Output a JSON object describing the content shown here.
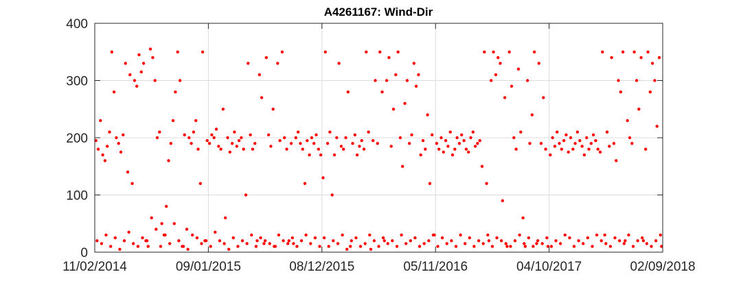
{
  "chart_data": {
    "type": "scatter",
    "title": "A4261167: Wind-Dir",
    "xlabel": "",
    "ylabel": "",
    "x_tick_labels": [
      "11/02/2014",
      "09/01/2015",
      "08/12/2015",
      "05/11/2016",
      "04/10/2017",
      "02/09/2018"
    ],
    "x_tick_positions": [
      0,
      1,
      2,
      3,
      4,
      5
    ],
    "xlim": [
      0,
      5
    ],
    "y_ticks": [
      0,
      100,
      200,
      300,
      400
    ],
    "y_tick_labels": [
      "0",
      "100",
      "200",
      "300",
      "400"
    ],
    "ylim": [
      0,
      400
    ],
    "grid": true,
    "marker_color": "#ff0000",
    "series": [
      {
        "x": [
          0.01,
          0.03,
          0.05,
          0.07,
          0.09,
          0.11,
          0.13,
          0.15,
          0.17,
          0.19,
          0.21,
          0.23,
          0.25,
          0.27,
          0.29,
          0.31,
          0.33,
          0.35,
          0.37,
          0.39,
          0.41,
          0.43,
          0.45,
          0.47,
          0.49,
          0.51,
          0.53,
          0.55,
          0.57,
          0.59,
          0.61,
          0.63,
          0.65,
          0.67,
          0.69,
          0.71,
          0.73,
          0.75,
          0.77,
          0.79,
          0.81,
          0.83,
          0.85,
          0.87,
          0.89,
          0.91,
          0.93,
          0.95,
          0.97,
          0.99,
          1.01,
          1.03,
          1.05,
          1.07,
          1.09,
          1.11,
          1.13,
          1.15,
          1.17,
          1.19,
          1.21,
          1.23,
          1.25,
          1.27,
          1.29,
          1.31,
          1.33,
          1.35,
          1.37,
          1.39,
          1.41,
          1.43,
          1.45,
          1.47,
          1.49,
          1.51,
          1.53,
          1.55,
          1.57,
          1.59,
          1.61,
          1.63,
          1.65,
          1.67,
          1.69,
          1.71,
          1.73,
          1.75,
          1.77,
          1.79,
          1.81,
          1.83,
          1.85,
          1.87,
          1.89,
          1.91,
          1.93,
          1.95,
          1.97,
          1.99,
          2.01,
          2.03,
          2.05,
          2.07,
          2.09,
          2.11,
          2.13,
          2.15,
          2.17,
          2.19,
          2.21,
          2.23,
          2.25,
          2.27,
          2.29,
          2.31,
          2.33,
          2.35,
          2.37,
          2.39,
          2.41,
          2.43,
          2.45,
          2.47,
          2.49,
          2.51,
          2.53,
          2.55,
          2.57,
          2.59,
          2.61,
          2.63,
          2.65,
          2.67,
          2.69,
          2.71,
          2.73,
          2.75,
          2.77,
          2.79,
          2.81,
          2.83,
          2.85,
          2.87,
          2.89,
          2.91,
          2.93,
          2.95,
          2.97,
          2.99,
          3.01,
          3.03,
          3.05,
          3.07,
          3.09,
          3.11,
          3.13,
          3.15,
          3.17,
          3.19,
          3.21,
          3.23,
          3.25,
          3.27,
          3.29,
          3.31,
          3.33,
          3.35,
          3.37,
          3.39,
          3.41,
          3.43,
          3.45,
          3.47,
          3.49,
          3.51,
          3.53,
          3.55,
          3.57,
          3.59,
          3.61,
          3.63,
          3.65,
          3.67,
          3.69,
          3.71,
          3.73,
          3.75,
          3.77,
          3.79,
          3.81,
          3.83,
          3.85,
          3.87,
          3.89,
          3.91,
          3.93,
          3.95,
          3.97,
          3.99,
          4.01,
          4.03,
          4.05,
          4.07,
          4.09,
          4.11,
          4.13,
          4.15,
          4.17,
          4.19,
          4.21,
          4.23,
          4.25,
          4.27,
          4.29,
          4.31,
          4.33,
          4.35,
          4.37,
          4.39,
          4.41,
          4.43,
          4.45,
          4.47,
          4.49,
          4.51,
          4.53,
          4.55,
          4.57,
          4.59,
          4.61,
          4.63,
          4.65,
          4.67,
          4.69,
          4.71,
          4.73,
          4.75,
          4.77,
          4.79,
          4.81,
          4.83,
          4.85,
          4.87,
          4.89,
          4.91,
          4.93,
          4.95,
          4.97,
          4.99,
          0.02,
          0.06,
          0.1,
          0.14,
          0.18,
          0.22,
          0.26,
          0.3,
          0.34,
          0.38,
          0.42,
          0.46,
          0.5,
          0.54,
          0.58,
          0.62,
          0.66,
          0.7,
          0.74,
          0.78,
          0.82,
          0.86,
          0.9,
          0.94,
          0.98,
          1.02,
          1.06,
          1.1,
          1.14,
          1.18,
          1.22,
          1.26,
          1.3,
          1.34,
          1.38,
          1.42,
          1.46,
          1.5,
          1.54,
          1.58,
          1.62,
          1.66,
          1.7,
          1.74,
          1.78,
          1.82,
          1.86,
          1.9,
          1.94,
          1.98,
          2.02,
          2.06,
          2.1,
          2.14,
          2.18,
          2.22,
          2.26,
          2.3,
          2.34,
          2.38,
          2.42,
          2.46,
          2.5,
          2.54,
          2.58,
          2.62,
          2.66,
          2.7,
          2.74,
          2.78,
          2.82,
          2.86,
          2.9,
          2.94,
          2.98,
          3.02,
          3.06,
          3.1,
          3.14,
          3.18,
          3.22,
          3.26,
          3.3,
          3.34,
          3.38,
          3.42,
          3.46,
          3.5,
          3.54,
          3.58,
          3.62,
          3.66,
          3.7,
          3.74,
          3.78,
          3.82,
          3.86,
          3.9,
          3.94,
          3.98,
          4.02,
          4.06,
          4.1,
          4.14,
          4.18,
          4.22,
          4.26,
          4.3,
          4.34,
          4.38,
          4.42,
          4.46,
          4.5,
          4.54,
          4.58,
          4.62,
          4.66,
          4.7,
          4.74,
          4.78,
          4.82,
          4.86,
          4.9,
          4.94,
          4.98
        ],
        "y": [
          195,
          180,
          230,
          170,
          160,
          185,
          210,
          350,
          280,
          200,
          190,
          175,
          205,
          330,
          140,
          310,
          120,
          300,
          290,
          345,
          315,
          330,
          20,
          10,
          355,
          340,
          300,
          200,
          210,
          50,
          30,
          80,
          160,
          190,
          230,
          280,
          350,
          300,
          10,
          205,
          40,
          200,
          190,
          210,
          230,
          180,
          120,
          350,
          20,
          195,
          190,
          205,
          200,
          215,
          185,
          180,
          250,
          60,
          200,
          175,
          190,
          210,
          185,
          195,
          200,
          180,
          100,
          330,
          205,
          180,
          190,
          20,
          310,
          270,
          15,
          340,
          205,
          185,
          250,
          10,
          330,
          195,
          350,
          200,
          180,
          20,
          190,
          15,
          200,
          210,
          190,
          180,
          120,
          195,
          170,
          200,
          190,
          205,
          180,
          170,
          130,
          350,
          190,
          210,
          100,
          170,
          200,
          330,
          185,
          180,
          200,
          280,
          10,
          190,
          205,
          170,
          185,
          195,
          180,
          350,
          210,
          5,
          195,
          300,
          190,
          350,
          280,
          20,
          300,
          340,
          185,
          250,
          310,
          350,
          200,
          150,
          260,
          300,
          190,
          205,
          330,
          290,
          310,
          170,
          195,
          180,
          240,
          120,
          205,
          30,
          190,
          180,
          200,
          175,
          195,
          185,
          210,
          170,
          180,
          200,
          190,
          205,
          195,
          180,
          175,
          200,
          210,
          185,
          190,
          195,
          150,
          350,
          120,
          20,
          300,
          350,
          310,
          340,
          330,
          90,
          270,
          10,
          350,
          290,
          200,
          180,
          320,
          210,
          60,
          10,
          300,
          190,
          240,
          350,
          15,
          330,
          190,
          270,
          180,
          10,
          170,
          200,
          185,
          210,
          190,
          180,
          195,
          205,
          175,
          200,
          180,
          190,
          210,
          195,
          185,
          170,
          200,
          180,
          190,
          205,
          195,
          180,
          175,
          350,
          30,
          210,
          185,
          340,
          190,
          160,
          300,
          280,
          350,
          20,
          230,
          200,
          190,
          350,
          300,
          250,
          340,
          20,
          180,
          350,
          280,
          330,
          300,
          220,
          340,
          10,
          20,
          15,
          30,
          10,
          25,
          5,
          20,
          35,
          15,
          10,
          25,
          20,
          60,
          40,
          10,
          30,
          15,
          50,
          20,
          10,
          5,
          30,
          25,
          15,
          20,
          10,
          35,
          20,
          15,
          5,
          25,
          10,
          20,
          15,
          30,
          10,
          25,
          20,
          15,
          10,
          30,
          20,
          15,
          25,
          10,
          20,
          30,
          15,
          25,
          10,
          25,
          10,
          20,
          15,
          30,
          5,
          20,
          25,
          10,
          15,
          30,
          20,
          10,
          25,
          15,
          20,
          10,
          30,
          15,
          20,
          25,
          10,
          15,
          20,
          30,
          10,
          25,
          15,
          20,
          10,
          30,
          15,
          25,
          10,
          20,
          15,
          30,
          10,
          25,
          20,
          15,
          10,
          20,
          30,
          15,
          25,
          10,
          20,
          15,
          25,
          10,
          20,
          15,
          30,
          25,
          10,
          20,
          15,
          25,
          10,
          30,
          20,
          15,
          10,
          25,
          20,
          15,
          30,
          10,
          20,
          25,
          15,
          10,
          20,
          30
        ]
      }
    ]
  }
}
